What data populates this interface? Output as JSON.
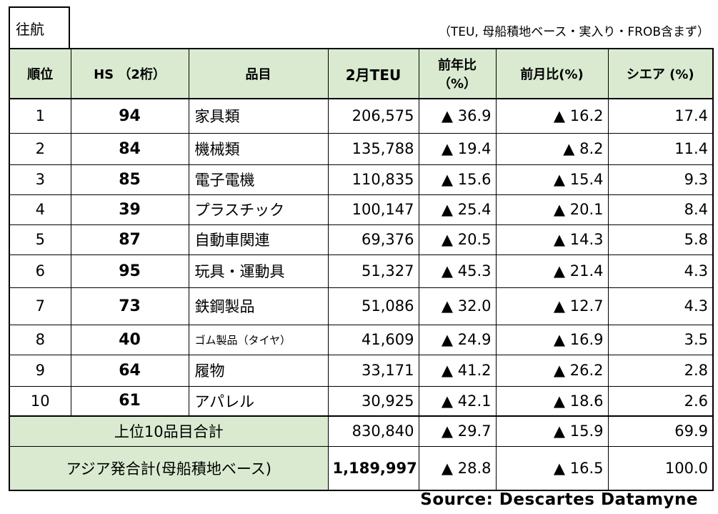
{
  "tab_label": "往航",
  "note": "（TEU, 母船積地ベース・実入り・FROB含まず）",
  "headers": {
    "rank": "順位",
    "hs": "HS （2桁）",
    "item": "品目",
    "teu": "2月TEU",
    "yoy_line1": "前年比",
    "yoy_line2": "（%）",
    "mom": "前月比(%)",
    "share": "シエア (%)"
  },
  "rows": [
    {
      "rank": "1",
      "hs": "94",
      "item": "家具類",
      "teu": "206,575",
      "yoy": "▲ 36.9",
      "mom": "▲ 16.2",
      "share": "17.4"
    },
    {
      "rank": "2",
      "hs": "84",
      "item": "機械類",
      "teu": "135,788",
      "yoy": "▲ 19.4",
      "mom": "▲ 8.2",
      "share": "11.4"
    },
    {
      "rank": "3",
      "hs": "85",
      "item": "電子電機",
      "teu": "110,835",
      "yoy": "▲ 15.6",
      "mom": "▲ 15.4",
      "share": "9.3"
    },
    {
      "rank": "4",
      "hs": "39",
      "item": "プラスチック",
      "teu": "100,147",
      "yoy": "▲ 25.4",
      "mom": "▲ 20.1",
      "share": "8.4"
    },
    {
      "rank": "5",
      "hs": "87",
      "item": "自動車関連",
      "teu": "69,376",
      "yoy": "▲ 20.5",
      "mom": "▲ 14.3",
      "share": "5.8"
    },
    {
      "rank": "6",
      "hs": "95",
      "item": "玩具・運動具",
      "teu": "51,327",
      "yoy": "▲ 45.3",
      "mom": "▲ 21.4",
      "share": "4.3"
    },
    {
      "rank": "7",
      "hs": "73",
      "item": "鉄鋼製品",
      "teu": "51,086",
      "yoy": "▲ 32.0",
      "mom": "▲ 12.7",
      "share": "4.3"
    },
    {
      "rank": "8",
      "hs": "40",
      "item": "ゴム製品（タイヤ）",
      "teu": "41,609",
      "yoy": "▲ 24.9",
      "mom": "▲ 16.9",
      "share": "3.5"
    },
    {
      "rank": "9",
      "hs": "64",
      "item": "履物",
      "teu": "33,171",
      "yoy": "▲ 41.2",
      "mom": "▲ 26.2",
      "share": "2.8"
    },
    {
      "rank": "10",
      "hs": "61",
      "item": "アパレル",
      "teu": "30,925",
      "yoy": "▲ 42.1",
      "mom": "▲ 18.6",
      "share": "2.6"
    }
  ],
  "top10": {
    "label": "上位10品目合計",
    "teu": "830,840",
    "yoy": "▲ 29.7",
    "mom": "▲ 15.9",
    "share": "69.9"
  },
  "total": {
    "label": "アジア発合計(母船積地ベース)",
    "teu": "1,189,997",
    "yoy": "▲ 28.8",
    "mom": "▲ 16.5",
    "share": "100.0"
  },
  "source": "Source: Descartes Datamyne"
}
